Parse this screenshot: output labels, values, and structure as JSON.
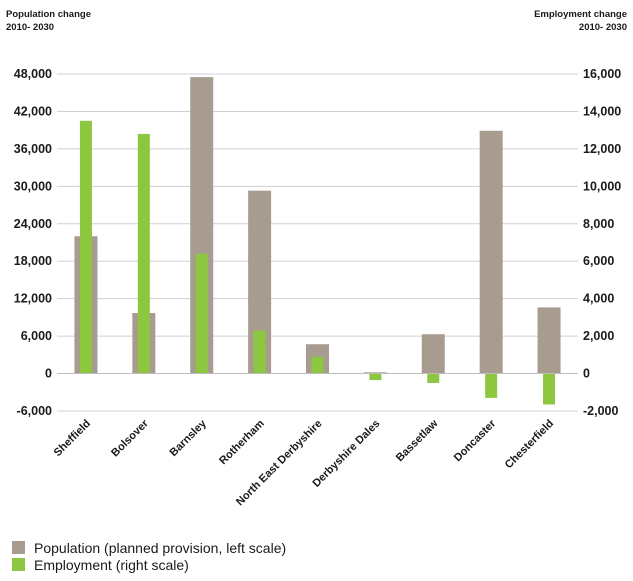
{
  "chart_data": {
    "type": "bar",
    "left_axis_title": [
      "Population change",
      "2010- 2030"
    ],
    "right_axis_title": [
      "Employment change",
      "2010- 2030"
    ],
    "categories": [
      "Sheffield",
      "Bolsover",
      "Barnsley",
      "Rotherham",
      "North East Derbyshire",
      "Derbyshire Dales",
      "Bassetlaw",
      "Doncaster",
      "Chesterfield"
    ],
    "series": [
      {
        "name": "Population (planned provision, left scale)",
        "axis": "left",
        "color": "#a89c91",
        "values": [
          22000,
          9700,
          47500,
          29300,
          4700,
          200,
          6300,
          38900,
          10600
        ]
      },
      {
        "name": "Employment (right scale)",
        "axis": "right",
        "color": "#8dc63f",
        "values": [
          13500,
          12800,
          6400,
          2300,
          900,
          -350,
          -500,
          -1300,
          -1650
        ]
      }
    ],
    "left_ylim": [
      -6000,
      48000
    ],
    "left_ticks": [
      "-6,000",
      "0",
      "6,000",
      "12,000",
      "18,000",
      "24,000",
      "30,000",
      "36,000",
      "42,000",
      "48,000"
    ],
    "right_ylim": [
      -2000,
      16000
    ],
    "right_ticks": [
      "-2,000",
      "0",
      "2,000",
      "4,000",
      "6,000",
      "8,000",
      "10,000",
      "12,000",
      "14,000",
      "16,000"
    ],
    "grid": "horizontal",
    "legend_position": "bottom-left"
  }
}
